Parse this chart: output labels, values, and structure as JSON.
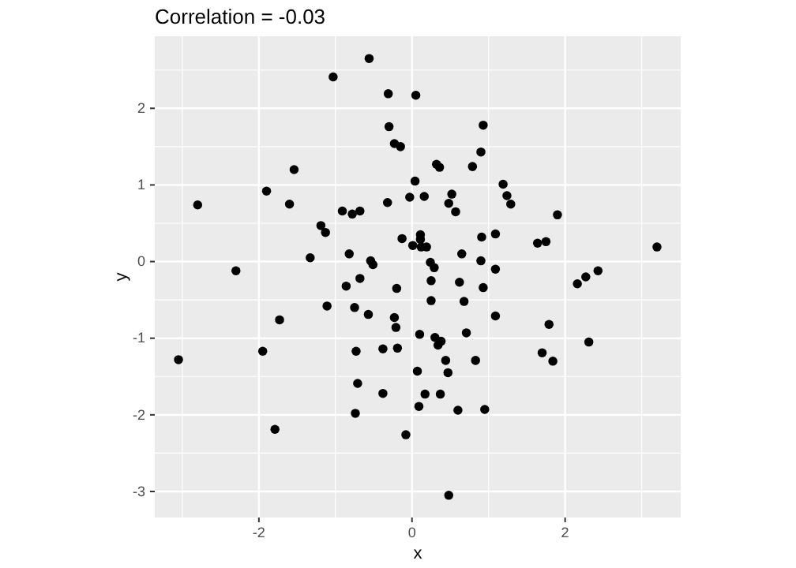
{
  "chart_data": {
    "type": "scatter",
    "title": "Correlation = -0.03",
    "xlabel": "x",
    "ylabel": "y",
    "xlim": [
      -3.36,
      3.51
    ],
    "ylim": [
      -3.34,
      2.94
    ],
    "xticks": [
      {
        "value": -3,
        "label": null
      },
      -2,
      {
        "value": -1,
        "label": null
      },
      0,
      {
        "value": 1,
        "label": null
      },
      2,
      {
        "value": 3,
        "label": null
      }
    ],
    "yticks": [
      -3,
      {
        "value": -2.5,
        "label": null
      },
      -2,
      {
        "value": -1.5,
        "label": null
      },
      -1,
      {
        "value": -0.5,
        "label": null
      },
      0,
      {
        "value": 0.5,
        "label": null
      },
      1,
      {
        "value": 1.5,
        "label": null
      },
      2,
      {
        "value": 2.5,
        "label": null
      }
    ],
    "grid": true,
    "marker": "circle",
    "series": [
      {
        "color": "#000000",
        "x": [
          -2.8,
          -2.3,
          -1.9,
          -1.54,
          -1.6,
          -1.03,
          -0.56,
          -0.31,
          -0.3,
          -0.23,
          -0.15,
          0.05,
          0.04,
          -0.03,
          -0.32,
          -0.91,
          -0.78,
          -0.68,
          -1.19,
          -1.13,
          -1.33,
          -0.82,
          -0.54,
          -0.51,
          -0.13,
          0.01,
          -0.68,
          0.93,
          0.9,
          0.32,
          0.36,
          0.79,
          0.16,
          1.19,
          1.24,
          1.29,
          0.52,
          0.48,
          0.57,
          1.9,
          0.11,
          0.11,
          0.12,
          0.19,
          0.91,
          1.09,
          1.64,
          1.75,
          3.2,
          0.65,
          0.9,
          0.24,
          0.29,
          1.09,
          0.25,
          0.62,
          2.27,
          2.43,
          2.16,
          -0.86,
          -0.2,
          -1.11,
          -0.75,
          -0.57,
          -0.23,
          -0.21,
          -1.73,
          -1.95,
          -3.05,
          -0.73,
          -0.38,
          -0.19,
          -0.71,
          -0.38,
          -0.74,
          -1.79,
          -0.08,
          0.93,
          0.25,
          0.68,
          1.09,
          1.79,
          0.1,
          0.3,
          0.38,
          0.34,
          0.71,
          2.31,
          1.7,
          1.84,
          0.44,
          0.83,
          0.07,
          0.47,
          0.17,
          0.37,
          0.09,
          0.6,
          0.95,
          0.48
        ],
        "values": [
          0.74,
          -0.12,
          0.92,
          1.2,
          0.75,
          2.41,
          2.65,
          2.19,
          1.76,
          1.54,
          1.5,
          2.17,
          1.05,
          0.84,
          0.77,
          0.66,
          0.62,
          0.66,
          0.47,
          0.38,
          0.05,
          0.1,
          0.01,
          -0.04,
          0.3,
          0.21,
          -0.22,
          1.78,
          1.43,
          1.27,
          1.23,
          1.24,
          0.85,
          1.01,
          0.86,
          0.75,
          0.88,
          0.76,
          0.65,
          0.61,
          0.35,
          0.29,
          0.19,
          0.19,
          0.32,
          0.36,
          0.24,
          0.26,
          0.19,
          0.1,
          0.01,
          -0.01,
          -0.08,
          -0.1,
          -0.25,
          -0.27,
          -0.2,
          -0.12,
          -0.29,
          -0.32,
          -0.35,
          -0.58,
          -0.6,
          -0.69,
          -0.73,
          -0.86,
          -0.76,
          -1.17,
          -1.28,
          -1.17,
          -1.14,
          -1.13,
          -1.59,
          -1.72,
          -1.98,
          -2.19,
          -2.26,
          -0.34,
          -0.51,
          -0.52,
          -0.71,
          -0.82,
          -0.95,
          -0.99,
          -1.04,
          -1.09,
          -0.93,
          -1.05,
          -1.19,
          -1.3,
          -1.29,
          -1.29,
          -1.43,
          -1.45,
          -1.73,
          -1.73,
          -1.89,
          -1.94,
          -1.93,
          -3.05
        ]
      }
    ]
  }
}
